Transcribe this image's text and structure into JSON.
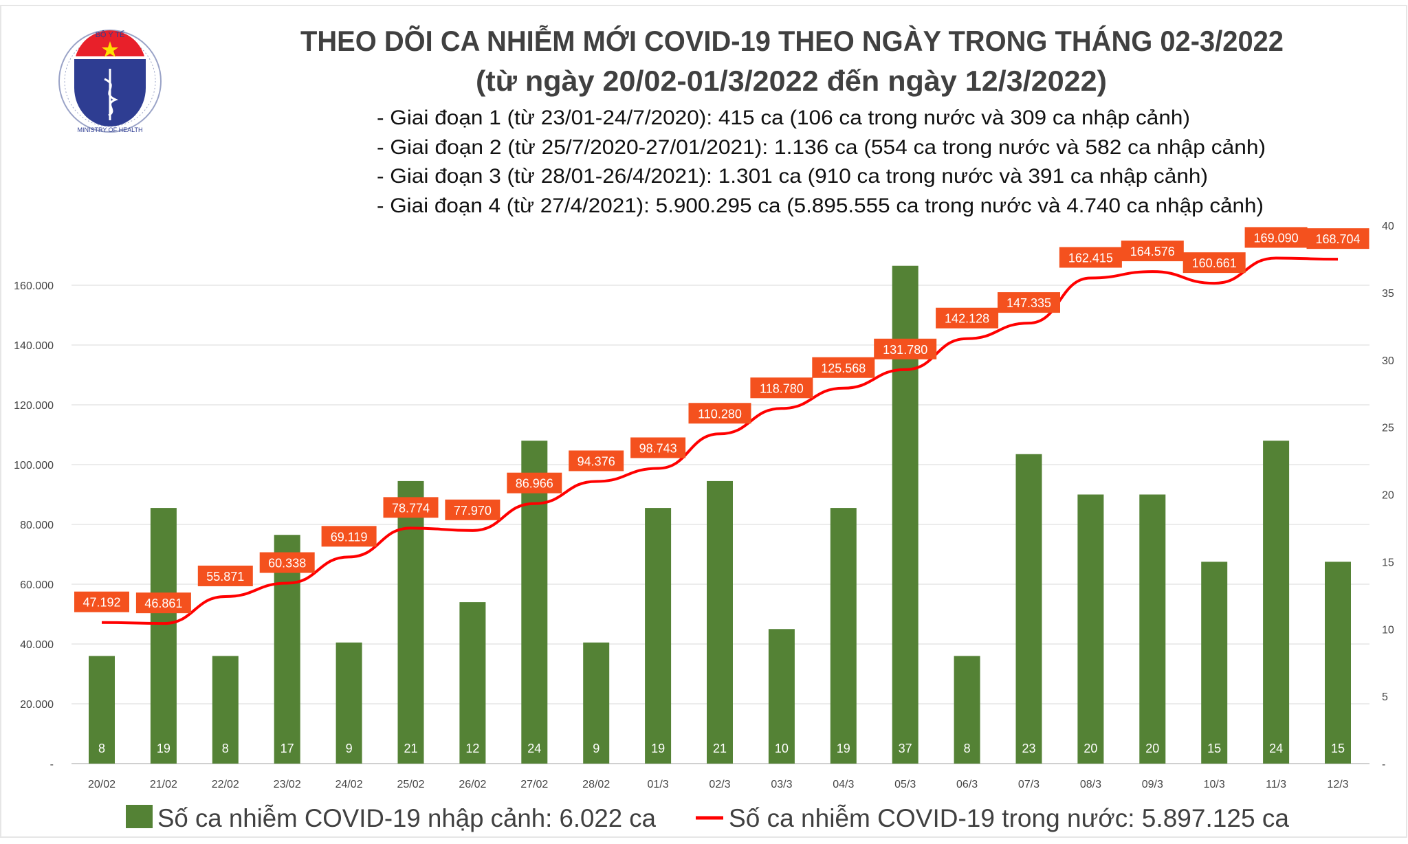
{
  "logo": {
    "text_top": "BỘ Y TẾ",
    "text_bottom": "MINISTRY OF HEALTH"
  },
  "title_line1": "THEO DÕI CA NHIỄM MỚI COVID-19 THEO NGÀY TRONG THÁNG 02-3/2022",
  "title_line2": "(từ ngày 20/02-01/3/2022 đến ngày 12/3/2022)",
  "notes": [
    "- Giai đoạn 1 (từ 23/01-24/7/2020): 415 ca (106 ca trong nước và 309 ca nhập cảnh)",
    "- Giai đoạn 2 (từ 25/7/2020-27/01/2021): 1.136 ca (554 ca trong nước và 582 ca nhập cảnh)",
    "- Giai đoạn 3 (từ 28/01-26/4/2021): 1.301 ca (910 ca trong nước và 391 ca nhập cảnh)",
    "- Giai đoạn 4 (từ 27/4/2021): 5.900.295 ca (5.895.555 ca trong nước và 4.740 ca nhập cảnh)"
  ],
  "colors": {
    "bar": "#548235",
    "line": "#ff0000",
    "label_bg": "#f4511e",
    "title": "#404040",
    "grid": "#d9d9d9"
  },
  "chart_data": {
    "type": "bar+line",
    "categories": [
      "20/02",
      "21/02",
      "22/02",
      "23/02",
      "24/02",
      "25/02",
      "26/02",
      "27/02",
      "28/02",
      "01/3",
      "02/3",
      "03/3",
      "04/3",
      "05/3",
      "06/3",
      "07/3",
      "08/3",
      "09/3",
      "10/3",
      "11/3",
      "12/3"
    ],
    "series": [
      {
        "name": "Số ca nhiễm COVID-19 nhập cảnh: 6.022 ca",
        "type": "bar",
        "axis": "right",
        "values": [
          8,
          19,
          8,
          17,
          9,
          21,
          12,
          24,
          9,
          19,
          21,
          10,
          19,
          37,
          8,
          23,
          20,
          20,
          15,
          24,
          15
        ],
        "labels": [
          "8",
          "19",
          "8",
          "17",
          "9",
          "21",
          "12",
          "24",
          "9",
          "19",
          "21",
          "10",
          "19",
          "37",
          "8",
          "23",
          "20",
          "20",
          "15",
          "24",
          "15"
        ]
      },
      {
        "name": "Số ca nhiễm COVID-19 trong nước: 5.897.125 ca",
        "type": "line",
        "axis": "left",
        "values": [
          47192,
          46861,
          55871,
          60338,
          69119,
          78774,
          77970,
          86966,
          94376,
          98743,
          110280,
          118780,
          125568,
          131780,
          142128,
          147335,
          162415,
          164576,
          160661,
          169090,
          168704
        ],
        "labels": [
          "47.192",
          "46.861",
          "55.871",
          "60.338",
          "69.119",
          "78.774",
          "77.970",
          "86.966",
          "94.376",
          "98.743",
          "110.280",
          "118.780",
          "125.568",
          "131.780",
          "142.128",
          "147.335",
          "162.415",
          "164.576",
          "160.661",
          "169.090",
          "168.704"
        ]
      }
    ],
    "left_axis": {
      "ylim": [
        0,
        180000
      ],
      "ticks": [
        "-",
        "20.000",
        "40.000",
        "60.000",
        "80.000",
        "100.000",
        "120.000",
        "140.000",
        "160.000"
      ]
    },
    "right_axis": {
      "ylim": [
        0,
        40
      ],
      "ticks": [
        "-",
        "5",
        "10",
        "15",
        "20",
        "25",
        "30",
        "35",
        "40"
      ]
    },
    "grid": true,
    "legend": "bottom"
  }
}
